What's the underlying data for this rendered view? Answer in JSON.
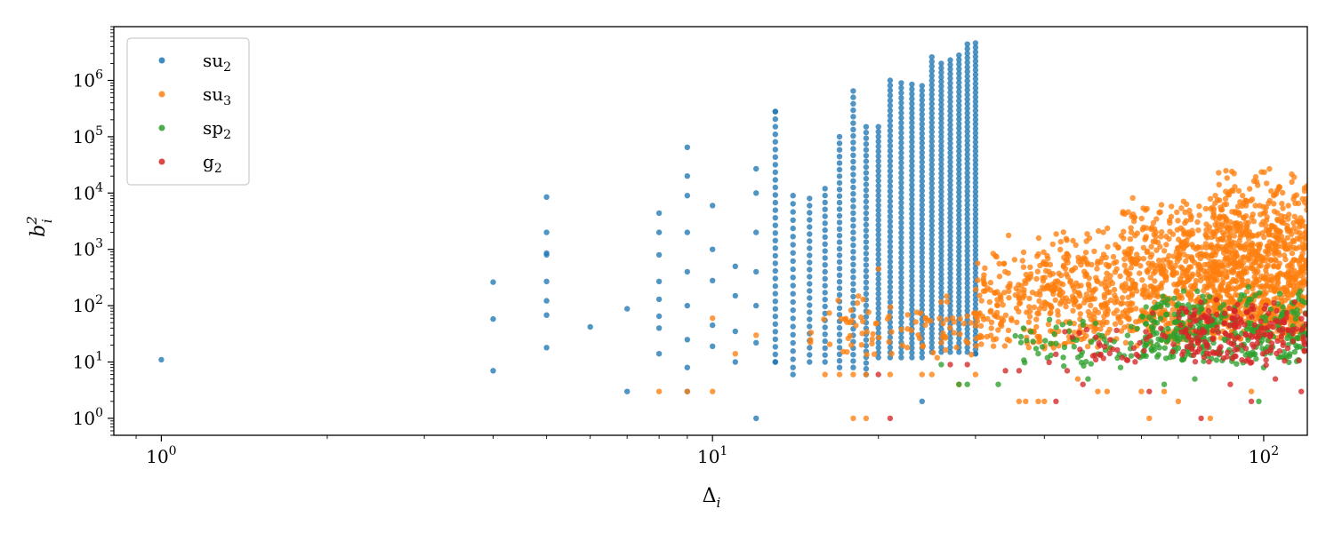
{
  "chart_data": {
    "type": "scatter",
    "xscale": "log",
    "yscale": "log",
    "xlim": [
      0.82,
      120
    ],
    "ylim": [
      0.5,
      9000000
    ],
    "xlabel": "Δ_i",
    "ylabel": "b_i^2",
    "x_ticks": [
      {
        "value": 1,
        "base": "10",
        "exp": "0"
      },
      {
        "value": 10,
        "base": "10",
        "exp": "1"
      },
      {
        "value": 100,
        "base": "10",
        "exp": "2"
      }
    ],
    "y_ticks": [
      {
        "value": 1,
        "base": "10",
        "exp": "0"
      },
      {
        "value": 10,
        "base": "10",
        "exp": "1"
      },
      {
        "value": 100,
        "base": "10",
        "exp": "2"
      },
      {
        "value": 1000,
        "base": "10",
        "exp": "3"
      },
      {
        "value": 10000,
        "base": "10",
        "exp": "4"
      },
      {
        "value": 100000,
        "base": "10",
        "exp": "5"
      },
      {
        "value": 1000000,
        "base": "10",
        "exp": "6"
      }
    ],
    "legend": {
      "position": "top-left",
      "entries": [
        {
          "label": "su",
          "sub": "2"
        },
        {
          "label": "su",
          "sub": "3"
        },
        {
          "label": "sp",
          "sub": "2"
        },
        {
          "label": "g",
          "sub": "2"
        }
      ]
    },
    "grid": false,
    "colors": [
      "#1f77b4",
      "#ff7f0e",
      "#2ca02c",
      "#d62728"
    ],
    "series": [
      {
        "name": "su2",
        "explicit_points": [
          [
            1,
            11
          ],
          [
            4,
            7
          ],
          [
            4,
            58
          ],
          [
            4,
            262
          ],
          [
            5,
            18
          ],
          [
            5,
            68
          ],
          [
            5,
            122
          ],
          [
            5,
            270
          ],
          [
            5,
            800
          ],
          [
            5,
            860
          ],
          [
            5,
            2000
          ],
          [
            5,
            8500
          ],
          [
            6,
            42
          ],
          [
            7,
            3
          ],
          [
            7,
            88
          ],
          [
            8,
            14
          ],
          [
            8,
            40
          ],
          [
            8,
            65
          ],
          [
            8,
            130
          ],
          [
            8,
            270
          ],
          [
            8,
            800
          ],
          [
            8,
            2000
          ],
          [
            8,
            4400
          ],
          [
            9,
            3
          ],
          [
            9,
            8
          ],
          [
            9,
            25
          ],
          [
            9,
            100
          ],
          [
            9,
            400
          ],
          [
            9,
            2000
          ],
          [
            9,
            9000
          ],
          [
            9,
            20000
          ],
          [
            9,
            65000
          ],
          [
            10,
            19
          ],
          [
            10,
            45
          ],
          [
            10,
            280
          ],
          [
            10,
            1000
          ],
          [
            10,
            6000
          ],
          [
            11,
            10
          ],
          [
            11,
            35
          ],
          [
            11,
            150
          ],
          [
            11,
            500
          ],
          [
            12,
            1
          ],
          [
            12,
            22
          ],
          [
            12,
            100
          ],
          [
            12,
            400
          ],
          [
            12,
            2000
          ],
          [
            12,
            10000
          ],
          [
            12,
            27000
          ],
          [
            13,
            10
          ],
          [
            13,
            280000
          ],
          [
            14,
            6
          ],
          [
            24,
            2
          ],
          [
            30,
            14
          ]
        ],
        "columns": [
          {
            "x": 13,
            "ymin": 10,
            "ymax": 280000,
            "n": 34
          },
          {
            "x": 14,
            "ymin": 8,
            "ymax": 9000,
            "n": 22
          },
          {
            "x": 15,
            "ymin": 10,
            "ymax": 8000,
            "n": 24
          },
          {
            "x": 16,
            "ymin": 10,
            "ymax": 12000,
            "n": 26
          },
          {
            "x": 17,
            "ymin": 8,
            "ymax": 100000,
            "n": 36
          },
          {
            "x": 18,
            "ymin": 8,
            "ymax": 650000,
            "n": 44
          },
          {
            "x": 19,
            "ymin": 6,
            "ymax": 150000,
            "n": 44
          },
          {
            "x": 20,
            "ymin": 12,
            "ymax": 150000,
            "n": 48
          },
          {
            "x": 21,
            "ymin": 12,
            "ymax": 1000000,
            "n": 56
          },
          {
            "x": 22,
            "ymin": 12,
            "ymax": 900000,
            "n": 56
          },
          {
            "x": 23,
            "ymin": 12,
            "ymax": 850000,
            "n": 58
          },
          {
            "x": 24,
            "ymin": 12,
            "ymax": 800000,
            "n": 58
          },
          {
            "x": 25,
            "ymin": 15,
            "ymax": 2600000,
            "n": 64
          },
          {
            "x": 26,
            "ymin": 15,
            "ymax": 2000000,
            "n": 64
          },
          {
            "x": 27,
            "ymin": 15,
            "ymax": 2300000,
            "n": 64
          },
          {
            "x": 28,
            "ymin": 15,
            "ymax": 2800000,
            "n": 66
          },
          {
            "x": 29,
            "ymin": 15,
            "ymax": 4400000,
            "n": 68
          },
          {
            "x": 30,
            "ymin": 14,
            "ymax": 4600000,
            "n": 70
          }
        ]
      },
      {
        "name": "su3",
        "explicit_points": [
          [
            8,
            3
          ],
          [
            9,
            3
          ],
          [
            10,
            3
          ],
          [
            10,
            60
          ],
          [
            11,
            14
          ],
          [
            12,
            30
          ],
          [
            16,
            6
          ],
          [
            17,
            6
          ],
          [
            18,
            1
          ],
          [
            18,
            6
          ],
          [
            19,
            1
          ],
          [
            19,
            6
          ],
          [
            20,
            450
          ],
          [
            21,
            6
          ],
          [
            24,
            6
          ],
          [
            25,
            6
          ],
          [
            28,
            4
          ],
          [
            30,
            6
          ],
          [
            36,
            2
          ],
          [
            37,
            2
          ],
          [
            39,
            2
          ],
          [
            40,
            2
          ],
          [
            46,
            5
          ],
          [
            50,
            3
          ],
          [
            52,
            3
          ],
          [
            60,
            3
          ],
          [
            62,
            1
          ],
          [
            66,
            3
          ],
          [
            70,
            2
          ],
          [
            80,
            1
          ],
          [
            95,
            3
          ]
        ],
        "clusters": [
          {
            "xmin": 15,
            "xmax": 30,
            "ymin": 6,
            "ymax": 250,
            "n": 90
          },
          {
            "xmin": 30,
            "xmax": 40,
            "ymin": 6,
            "ymax": 2000,
            "n": 160
          },
          {
            "xmin": 40,
            "xmax": 55,
            "ymin": 6,
            "ymax": 3600,
            "n": 260
          },
          {
            "xmin": 55,
            "xmax": 80,
            "ymin": 6,
            "ymax": 10000,
            "n": 500
          },
          {
            "xmin": 80,
            "xmax": 120,
            "ymin": 5,
            "ymax": 38000,
            "n": 900
          }
        ]
      },
      {
        "name": "sp2",
        "explicit_points": [
          [
            26,
            9
          ],
          [
            28,
            4
          ],
          [
            29,
            4
          ],
          [
            33,
            4
          ],
          [
            48,
            5
          ],
          [
            55,
            8
          ],
          [
            66,
            4
          ],
          [
            75,
            5
          ],
          [
            98,
            2
          ],
          [
            100,
            8
          ]
        ],
        "clusters": [
          {
            "xmin": 35,
            "xmax": 60,
            "ymin": 5,
            "ymax": 60,
            "n": 60
          },
          {
            "xmin": 60,
            "xmax": 120,
            "ymin": 5,
            "ymax": 250,
            "n": 320
          }
        ]
      },
      {
        "name": "g2",
        "explicit_points": [
          [
            20,
            6
          ],
          [
            21,
            1
          ],
          [
            27,
            9
          ],
          [
            29,
            9
          ],
          [
            34,
            7
          ],
          [
            36,
            7
          ],
          [
            42,
            2
          ],
          [
            44,
            7
          ],
          [
            47,
            4
          ],
          [
            62,
            3
          ],
          [
            77,
            1
          ],
          [
            87,
            4
          ],
          [
            95,
            2
          ],
          [
            105,
            5
          ],
          [
            117,
            3
          ]
        ],
        "clusters": [
          {
            "xmin": 40,
            "xmax": 70,
            "ymin": 5,
            "ymax": 80,
            "n": 40
          },
          {
            "xmin": 70,
            "xmax": 120,
            "ymin": 5,
            "ymax": 160,
            "n": 200
          }
        ]
      }
    ]
  }
}
